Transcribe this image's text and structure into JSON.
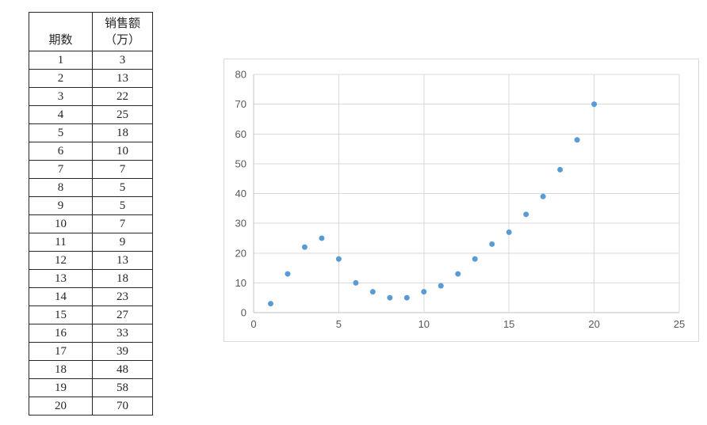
{
  "table": {
    "col_headers": [
      "期数",
      "销售额\n（万）"
    ],
    "rows": [
      [
        "1",
        "3"
      ],
      [
        "2",
        "13"
      ],
      [
        "3",
        "22"
      ],
      [
        "4",
        "25"
      ],
      [
        "5",
        "18"
      ],
      [
        "6",
        "10"
      ],
      [
        "7",
        "7"
      ],
      [
        "8",
        "5"
      ],
      [
        "9",
        "5"
      ],
      [
        "10",
        "7"
      ],
      [
        "11",
        "9"
      ],
      [
        "12",
        "13"
      ],
      [
        "13",
        "18"
      ],
      [
        "14",
        "23"
      ],
      [
        "15",
        "27"
      ],
      [
        "16",
        "33"
      ],
      [
        "17",
        "39"
      ],
      [
        "18",
        "48"
      ],
      [
        "19",
        "58"
      ],
      [
        "20",
        "70"
      ]
    ]
  },
  "chart_data": {
    "type": "scatter",
    "title": "",
    "xlabel": "",
    "ylabel": "",
    "x": [
      1,
      2,
      3,
      4,
      5,
      6,
      7,
      8,
      9,
      10,
      11,
      12,
      13,
      14,
      15,
      16,
      17,
      18,
      19,
      20
    ],
    "y": [
      3,
      13,
      22,
      25,
      18,
      10,
      7,
      5,
      5,
      7,
      9,
      13,
      18,
      23,
      27,
      33,
      39,
      48,
      58,
      70
    ],
    "xlim": [
      0,
      25
    ],
    "ylim": [
      0,
      80
    ],
    "x_ticks": [
      0,
      5,
      10,
      15,
      20,
      25
    ],
    "y_ticks": [
      0,
      10,
      20,
      30,
      40,
      50,
      60,
      70,
      80
    ],
    "grid": true,
    "legend": "none",
    "marker_color": "#5B9BD5",
    "gridline_color": "#D9D9D9",
    "axis_line_color": "#BFBFBF",
    "tick_label_color": "#595959",
    "chart_border_color": "#D9D9D9"
  }
}
